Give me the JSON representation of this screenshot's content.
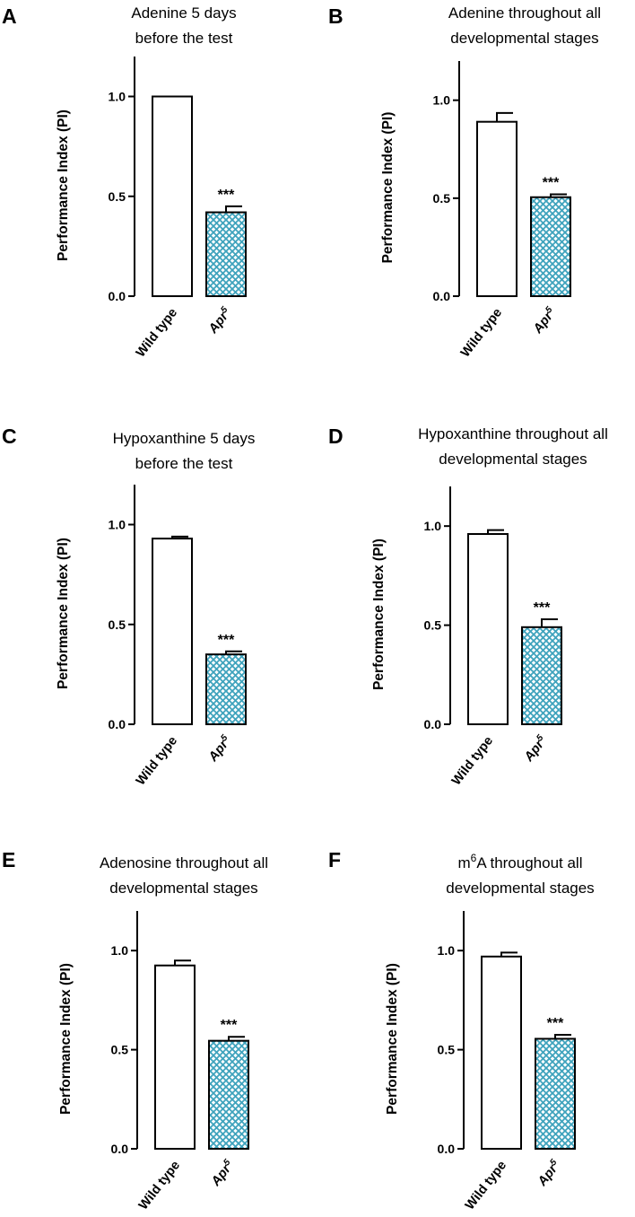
{
  "colors": {
    "axis": "#000000",
    "wild_type_fill": "#ffffff",
    "mutant_fill": "#ffffff",
    "mutant_pattern": "#3fa3bd"
  },
  "chart_data": [
    {
      "panel": "A",
      "type": "bar",
      "title_lines": [
        "Adenine 5 days",
        "before the test"
      ],
      "ylabel": "Performance Index (PI)",
      "ylim": [
        0,
        1.2
      ],
      "yticks": [
        "0.0",
        "0.5",
        "1.0"
      ],
      "categories": [
        "Wild type",
        "Apr"
      ],
      "category_superscripts": [
        "",
        "5"
      ],
      "values": [
        1.0,
        0.42
      ],
      "errors": [
        0,
        0.03
      ],
      "significance": [
        "",
        "***"
      ],
      "bar_patterns": [
        "solid-white",
        "cyan-crosshatch"
      ]
    },
    {
      "panel": "B",
      "type": "bar",
      "title_lines": [
        "Adenine throughout all",
        "developmental stages"
      ],
      "ylabel": "Performance Index (PI)",
      "ylim": [
        0,
        1.2
      ],
      "yticks": [
        "0.0",
        "0.5",
        "1.0"
      ],
      "categories": [
        "Wild type",
        "Apr"
      ],
      "category_superscripts": [
        "",
        "5"
      ],
      "values": [
        0.89,
        0.505
      ],
      "errors": [
        0.045,
        0.015
      ],
      "significance": [
        "",
        "***"
      ],
      "bar_patterns": [
        "solid-white",
        "cyan-crosshatch"
      ]
    },
    {
      "panel": "C",
      "type": "bar",
      "title_lines": [
        "Hypoxanthine 5 days",
        "before the test"
      ],
      "ylabel": "Performance Index (PI)",
      "ylim": [
        0,
        1.2
      ],
      "yticks": [
        "0.0",
        "0.5",
        "1.0"
      ],
      "categories": [
        "Wild type",
        "Apr"
      ],
      "category_superscripts": [
        "",
        "5"
      ],
      "values": [
        0.93,
        0.35
      ],
      "errors": [
        0.01,
        0.015
      ],
      "significance": [
        "",
        "***"
      ],
      "bar_patterns": [
        "solid-white",
        "cyan-crosshatch"
      ]
    },
    {
      "panel": "D",
      "type": "bar",
      "title_lines": [
        "Hypoxanthine throughout all",
        "developmental stages"
      ],
      "ylabel": "Performance Index (PI)",
      "ylim": [
        0,
        1.2
      ],
      "yticks": [
        "0.0",
        "0.5",
        "1.0"
      ],
      "categories": [
        "Wild type",
        "Apr"
      ],
      "category_superscripts": [
        "",
        "5"
      ],
      "values": [
        0.96,
        0.49
      ],
      "errors": [
        0.02,
        0.04
      ],
      "significance": [
        "",
        "***"
      ],
      "bar_patterns": [
        "solid-white",
        "cyan-crosshatch"
      ]
    },
    {
      "panel": "E",
      "type": "bar",
      "title_lines": [
        "Adenosine throughout all",
        "developmental stages"
      ],
      "ylabel": "Performance Index (PI)",
      "ylim": [
        0,
        1.2
      ],
      "yticks": [
        "0.0",
        "0.5",
        "1.0"
      ],
      "categories": [
        "Wild type",
        "Apr"
      ],
      "category_superscripts": [
        "",
        "5"
      ],
      "values": [
        0.925,
        0.545
      ],
      "errors": [
        0.025,
        0.02
      ],
      "significance": [
        "",
        "***"
      ],
      "bar_patterns": [
        "solid-white",
        "cyan-crosshatch"
      ]
    },
    {
      "panel": "F",
      "type": "bar",
      "title_lines": [
        "m",
        "A throughout all",
        "developmental stages"
      ],
      "title_superscript": "6",
      "ylabel": "Performance Index (PI)",
      "ylim": [
        0,
        1.2
      ],
      "yticks": [
        "0.0",
        "0.5",
        "1.0"
      ],
      "categories": [
        "Wild type",
        "Apr"
      ],
      "category_superscripts": [
        "",
        "5"
      ],
      "values": [
        0.97,
        0.555
      ],
      "errors": [
        0.02,
        0.02
      ],
      "significance": [
        "",
        "***"
      ],
      "bar_patterns": [
        "solid-white",
        "cyan-crosshatch"
      ]
    }
  ]
}
